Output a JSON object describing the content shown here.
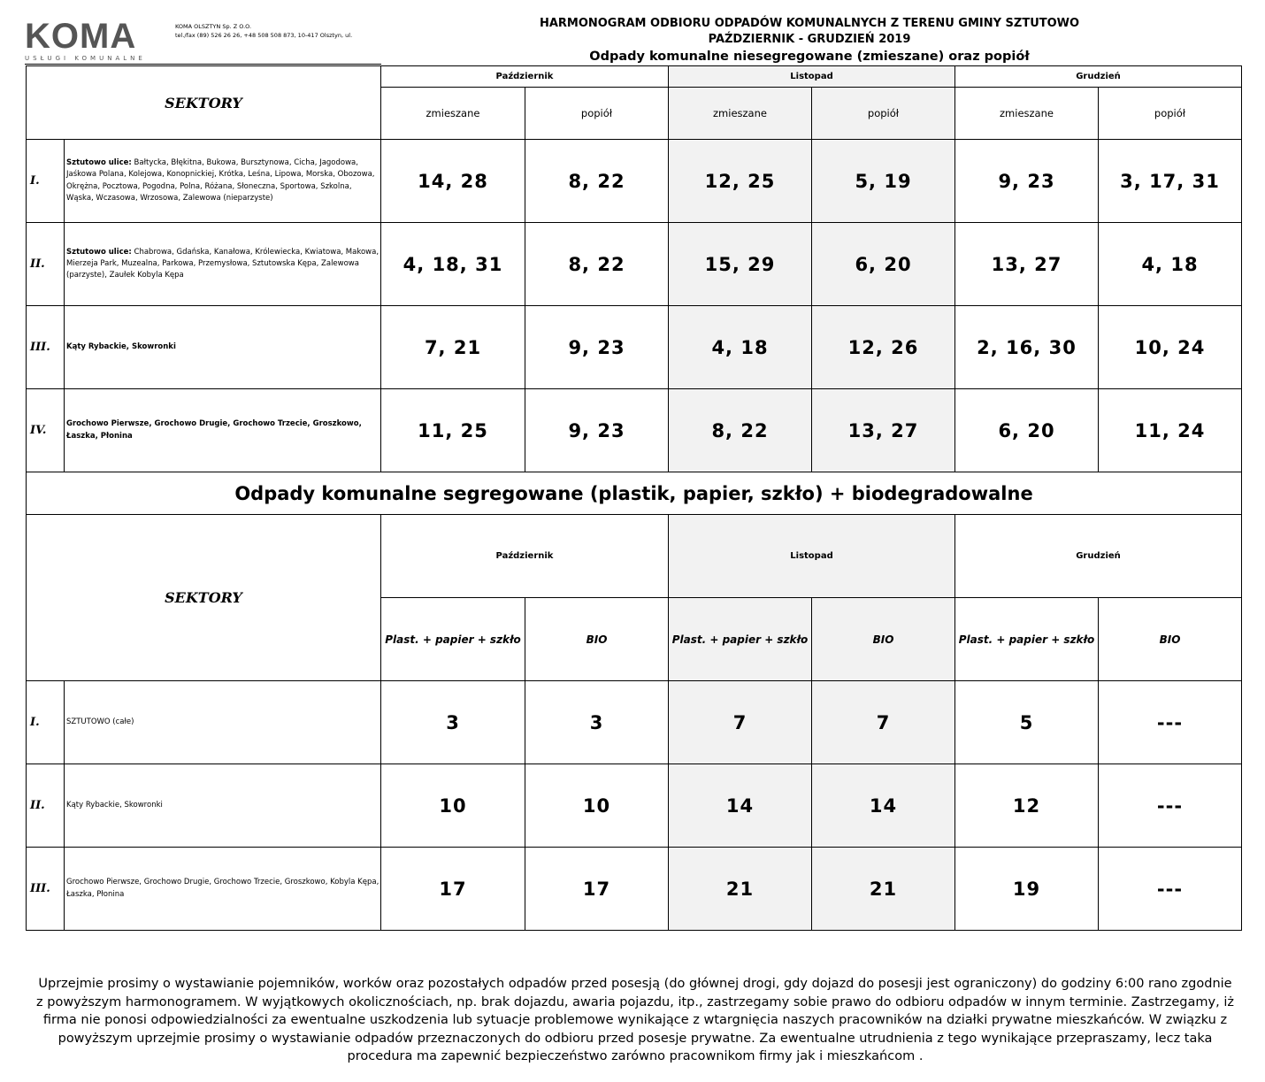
{
  "logo": {
    "name": "KOMA",
    "tagline": "USŁUGI KOMUNALNE"
  },
  "company": {
    "name": "KOMA OLSZTYN Sp. Z O.O.",
    "contact": "tel./fax (89) 526 26 26, +48 508 508 873, 10-417 Olsztyn, ul."
  },
  "header": {
    "title": "HARMONOGRAM ODBIORU ODPADÓW KOMUNALNYCH Z TERENU GMINY SZTUTOWO",
    "period": "PAŹDZIERNIK - GRUDZIEŃ 2019",
    "subtitle": "Odpady komunalne niesegregowane (zmieszane) oraz popiół"
  },
  "table1": {
    "sektory": "SEKTORY",
    "months": [
      "Październik",
      "Listopad",
      "Grudzień"
    ],
    "types": [
      "zmieszane",
      "popiół"
    ],
    "rows": [
      {
        "roman": "I.",
        "bold": "Sztutowo ulice:",
        "streets": " Bałtycka, Błękitna, Bukowa, Bursztynowa, Cicha, Jagodowa, Jaśkowa Polana, Kolejowa, Konopnickiej, Krótka, Leśna, Lipowa, Morska, Obozowa, Okrężna, Pocztowa, Pogodna, Polna, Różana, Słoneczna, Sportowa, Szkolna, Wąska, Wczasowa, Wrzosowa, Zalewowa (nieparzyste)",
        "values": [
          "14, 28",
          "8, 22",
          "12, 25",
          "5, 19",
          "9, 23",
          "3, 17, 31"
        ]
      },
      {
        "roman": "II.",
        "bold": "Sztutowo ulice:",
        "streets": " Chabrowa, Gdańska, Kanałowa, Królewiecka, Kwiatowa, Makowa, Mierzeja Park, Muzealna, Parkowa, Przemysłowa, Sztutowska Kępa, Zalewowa (parzyste), Zaułek Kobyla Kępa",
        "values": [
          "4, 18, 31",
          "8, 22",
          "15, 29",
          "6, 20",
          "13, 27",
          "4, 18"
        ]
      },
      {
        "roman": "III.",
        "bold": "Kąty Rybackie, Skowronki",
        "streets": "",
        "values": [
          "7, 21",
          "9, 23",
          "4, 18",
          "12, 26",
          "2, 16, 30",
          "10, 24"
        ]
      },
      {
        "roman": "IV.",
        "bold": "Grochowo Pierwsze, Grochowo Drugie, Grochowo Trzecie, Groszkowo, Łaszka, Płonina",
        "streets": "",
        "values": [
          "11, 25",
          "9, 23",
          "8, 22",
          "13, 27",
          "6, 20",
          "11, 24"
        ]
      }
    ]
  },
  "table2": {
    "title": "Odpady komunalne segregowane (plastik, papier, szkło) + biodegradowalne",
    "sektory": "SEKTORY",
    "months": [
      "Październik",
      "Listopad",
      "Grudzień"
    ],
    "types": [
      "Plast. + papier + szkło",
      "BIO"
    ],
    "rows": [
      {
        "roman": "I.",
        "streets": "SZTUTOWO (całe)",
        "values": [
          "3",
          "3",
          "7",
          "7",
          "5",
          "---"
        ]
      },
      {
        "roman": "II.",
        "streets": "Kąty Rybackie, Skowronki",
        "values": [
          "10",
          "10",
          "14",
          "14",
          "12",
          "---"
        ]
      },
      {
        "roman": "III.",
        "streets": "Grochowo Pierwsze, Grochowo Drugie, Grochowo Trzecie, Groszkowo, Kobyla Kępa, Łaszka, Płonina",
        "values": [
          "17",
          "17",
          "21",
          "21",
          "19",
          "---"
        ]
      }
    ]
  },
  "footer": "Uprzejmie prosimy o wystawianie pojemników, worków oraz pozostałych odpadów przed posesją (do głównej drogi, gdy dojazd do posesji jest ograniczony) do godziny 6:00 rano zgodnie z powyższym harmonogramem. W wyjątkowych okolicznościach, np. brak dojazdu, awaria pojazdu, itp., zastrzegamy sobie prawo do odbioru odpadów w innym terminie. Zastrzegamy, iż firma nie ponosi odpowiedzialności za ewentualne uszkodzenia lub sytuacje problemowe wynikające z wtargnięcia naszych pracowników na działki prywatne mieszkańców. W związku z powyższym uprzejmie prosimy o wystawianie odpadów przeznaczonych do odbioru przed posesje prywatne. Za ewentualne utrudnienia z tego wynikające przepraszamy, lecz taka procedura ma zapewnić bezpieczeństwo zarówno pracownikom firmy jak i mieszkańcom ."
}
